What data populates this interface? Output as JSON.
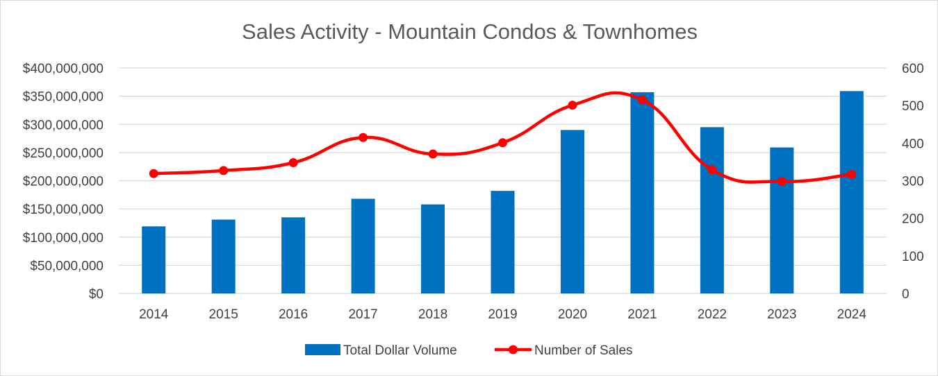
{
  "chart_data": {
    "type": "bar+line",
    "title": "Sales Activity - Mountain Condos & Townhomes",
    "categories": [
      "2014",
      "2015",
      "2016",
      "2017",
      "2018",
      "2019",
      "2020",
      "2021",
      "2022",
      "2023",
      "2024"
    ],
    "series": [
      {
        "name": "Total Dollar Volume",
        "type": "bar",
        "axis": "left",
        "color": "#0070c0",
        "values": [
          119000000,
          131000000,
          135000000,
          168000000,
          158000000,
          182000000,
          290000000,
          357000000,
          295000000,
          259000000,
          359000000
        ]
      },
      {
        "name": "Number of Sales",
        "type": "line",
        "axis": "right",
        "smooth": true,
        "color": "#ff0000",
        "values": [
          319,
          327,
          348,
          415,
          371,
          401,
          501,
          515,
          329,
          298,
          317
        ]
      }
    ],
    "y_left": {
      "min": 0,
      "max": 400000000,
      "ticks": [
        "$0",
        "$50,000,000",
        "$100,000,000",
        "$150,000,000",
        "$200,000,000",
        "$250,000,000",
        "$300,000,000",
        "$350,000,000",
        "$400,000,000"
      ]
    },
    "y_right": {
      "min": 0,
      "max": 600,
      "ticks": [
        "0",
        "100",
        "200",
        "300",
        "400",
        "500",
        "600"
      ]
    },
    "gridlines": true,
    "legend_position": "bottom"
  }
}
